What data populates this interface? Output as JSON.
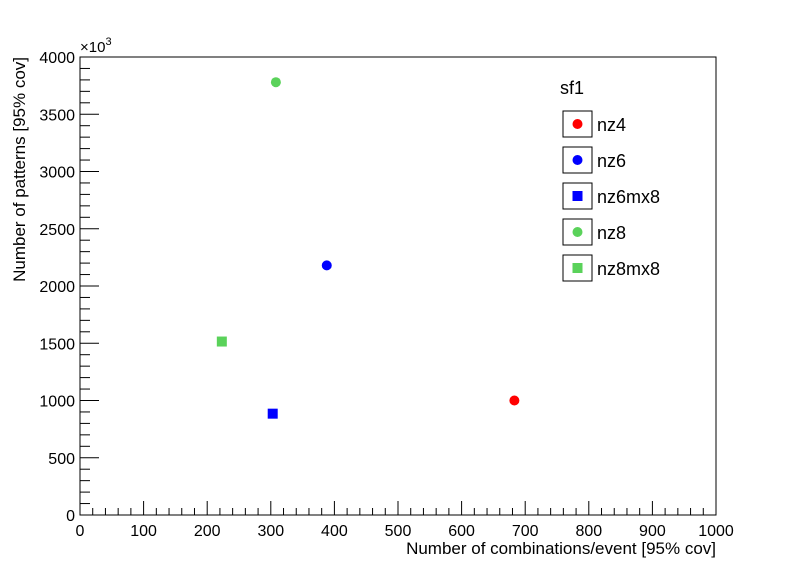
{
  "chart_data": {
    "type": "scatter",
    "title": "",
    "xlabel": "Number of combinations/event [95% cov]",
    "ylabel": "Number of patterns [95% cov]",
    "y_multiplier_label": "×10",
    "y_multiplier_exp": "3",
    "xlim": [
      0,
      1000
    ],
    "ylim": [
      0,
      4000
    ],
    "x_ticks": [
      0,
      100,
      200,
      300,
      400,
      500,
      600,
      700,
      800,
      900,
      1000
    ],
    "y_ticks": [
      0,
      500,
      1000,
      1500,
      2000,
      2500,
      3000,
      3500,
      4000
    ],
    "grid": false,
    "legend": {
      "title": "sf1",
      "placement": "top-right"
    },
    "series": [
      {
        "name": "nz4",
        "marker": "circle",
        "color": "#ff0000",
        "points": [
          {
            "x": 683,
            "y": 1000
          }
        ]
      },
      {
        "name": "nz6",
        "marker": "circle",
        "color": "#0000ff",
        "points": [
          {
            "x": 388,
            "y": 2180
          }
        ]
      },
      {
        "name": "nz6mx8",
        "marker": "square",
        "color": "#0000ff",
        "points": [
          {
            "x": 303,
            "y": 885
          }
        ]
      },
      {
        "name": "nz8",
        "marker": "circle",
        "color": "#5ad25a",
        "points": [
          {
            "x": 308,
            "y": 3780
          }
        ]
      },
      {
        "name": "nz8mx8",
        "marker": "square",
        "color": "#5ad25a",
        "points": [
          {
            "x": 223,
            "y": 1515
          }
        ]
      }
    ]
  }
}
